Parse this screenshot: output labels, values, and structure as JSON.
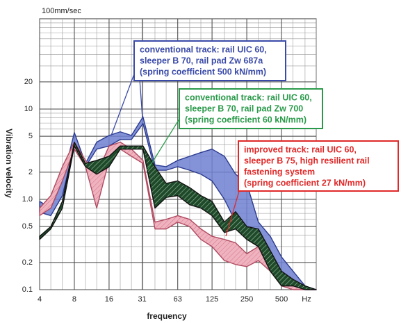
{
  "chart_data": {
    "type": "band",
    "y_unit_label": "100mm/sec",
    "ylabel": "Vibration velocity",
    "xlabel": "frequency",
    "x_unit": "Hz",
    "xscale": "log",
    "yscale": "log",
    "grid": true,
    "xlim": [
      4,
      1000
    ],
    "ylim": [
      0.1,
      100
    ],
    "xticks": [
      4,
      8,
      16,
      31,
      63,
      125,
      250,
      500
    ],
    "yticks": [
      0.1,
      0.2,
      0.5,
      {
        "value": 1,
        "label": "1.0"
      },
      2,
      5,
      10,
      20
    ],
    "x": [
      4,
      5,
      6.3,
      8,
      10,
      12.5,
      16,
      20,
      25,
      31.5,
      40,
      50,
      63,
      80,
      100,
      125,
      160,
      200,
      250,
      315,
      400,
      500,
      630,
      800,
      1000
    ],
    "series": [
      {
        "name": [
          "conventional track: rail UIC 60,",
          "sleeper B 70, rail pad Zw 687a",
          "(spring coefficient 500 kN/mm)"
        ],
        "color": "#3a4aa8",
        "fill": "#6f7fd0",
        "high": [
          0.95,
          0.8,
          1.6,
          5.5,
          2.5,
          4.3,
          5.1,
          5.6,
          5.1,
          8.2,
          2.4,
          2.3,
          2.7,
          3.0,
          3.3,
          3.6,
          3.0,
          1.9,
          1.5,
          0.56,
          0.39,
          0.23,
          0.16,
          0.11,
          0.1
        ],
        "low": [
          0.72,
          0.66,
          1.1,
          3.9,
          2.3,
          3.6,
          3.9,
          4.6,
          4.6,
          6.9,
          2.1,
          2.1,
          2.3,
          2.1,
          1.9,
          1.6,
          1.0,
          0.56,
          0.47,
          0.33,
          0.19,
          0.13,
          0.11,
          0.1,
          0.1
        ]
      },
      {
        "name": [
          "improved track: rail UIC 60,",
          "sleeper B 75, high resilient rail",
          "fastening system",
          "(spring coefficient 27 kN/mm)"
        ],
        "color": "#e02828",
        "fill": "#e99aaa",
        "high": [
          0.8,
          1.1,
          2.3,
          4.3,
          2.7,
          1.9,
          3.9,
          4.3,
          3.6,
          2.7,
          0.56,
          0.6,
          0.66,
          0.6,
          0.47,
          0.39,
          0.36,
          0.33,
          0.25,
          0.3,
          0.23,
          0.13,
          0.12,
          0.1,
          0.1
        ],
        "low": [
          0.66,
          0.8,
          1.6,
          3.6,
          2.3,
          0.8,
          2.7,
          3.6,
          3.0,
          2.5,
          0.47,
          0.47,
          0.56,
          0.5,
          0.36,
          0.3,
          0.21,
          0.19,
          0.18,
          0.21,
          0.16,
          0.11,
          0.1,
          0.1,
          0.1
        ]
      },
      {
        "name": [
          "conventional track: rail UIC 60,",
          "sleeper B 70, rail pad Zw 700",
          "(spring coefficient 60 kN/mm)"
        ],
        "color": "#2a9a4a",
        "fill": "#1f4a2a",
        "high": [
          0.39,
          0.5,
          0.95,
          4.3,
          2.5,
          2.7,
          3.0,
          3.9,
          3.9,
          3.9,
          2.3,
          1.5,
          1.6,
          1.35,
          1.1,
          0.95,
          0.56,
          0.73,
          0.5,
          0.47,
          0.27,
          0.16,
          0.13,
          0.11,
          0.1
        ],
        "low": [
          0.36,
          0.47,
          0.8,
          3.9,
          2.3,
          1.9,
          2.3,
          3.6,
          3.6,
          3.6,
          0.8,
          1.05,
          1.1,
          0.87,
          0.8,
          0.66,
          0.43,
          0.47,
          0.36,
          0.3,
          0.16,
          0.11,
          0.11,
          0.1,
          0.1
        ]
      }
    ]
  }
}
